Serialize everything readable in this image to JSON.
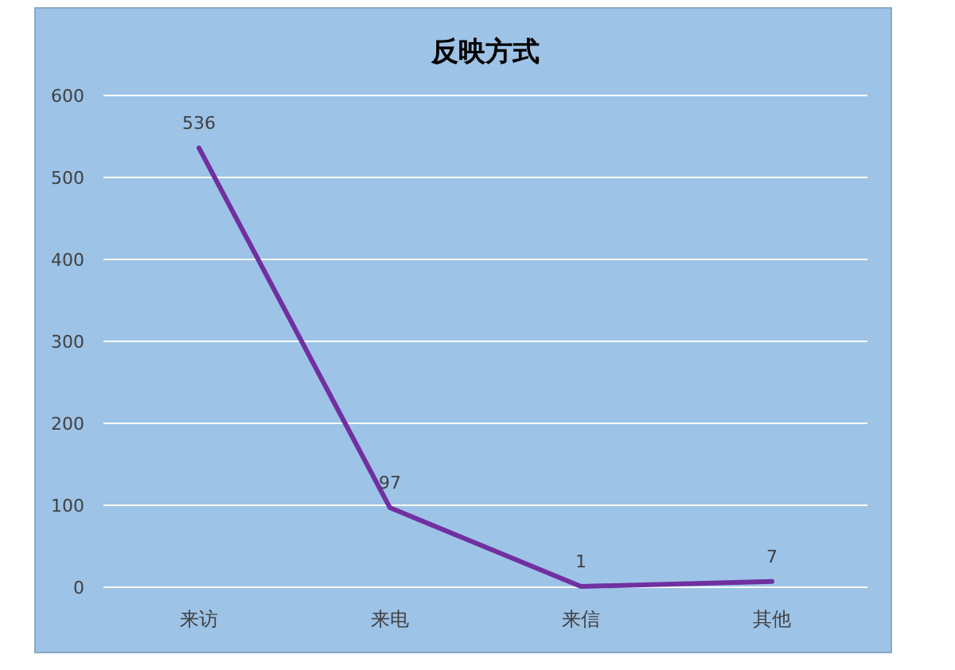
{
  "chart_data": {
    "type": "line",
    "title": "反映方式",
    "categories": [
      "来访",
      "来电",
      "来信",
      "其他"
    ],
    "series": [
      {
        "color": "#7030a0",
        "values": [
          536,
          97,
          1,
          7
        ]
      }
    ],
    "ylim": [
      0,
      600
    ],
    "yticks": [
      0,
      100,
      200,
      300,
      400,
      500,
      600
    ],
    "grid": "y",
    "data_labels": true,
    "marker": "none",
    "line_style": "solid"
  }
}
